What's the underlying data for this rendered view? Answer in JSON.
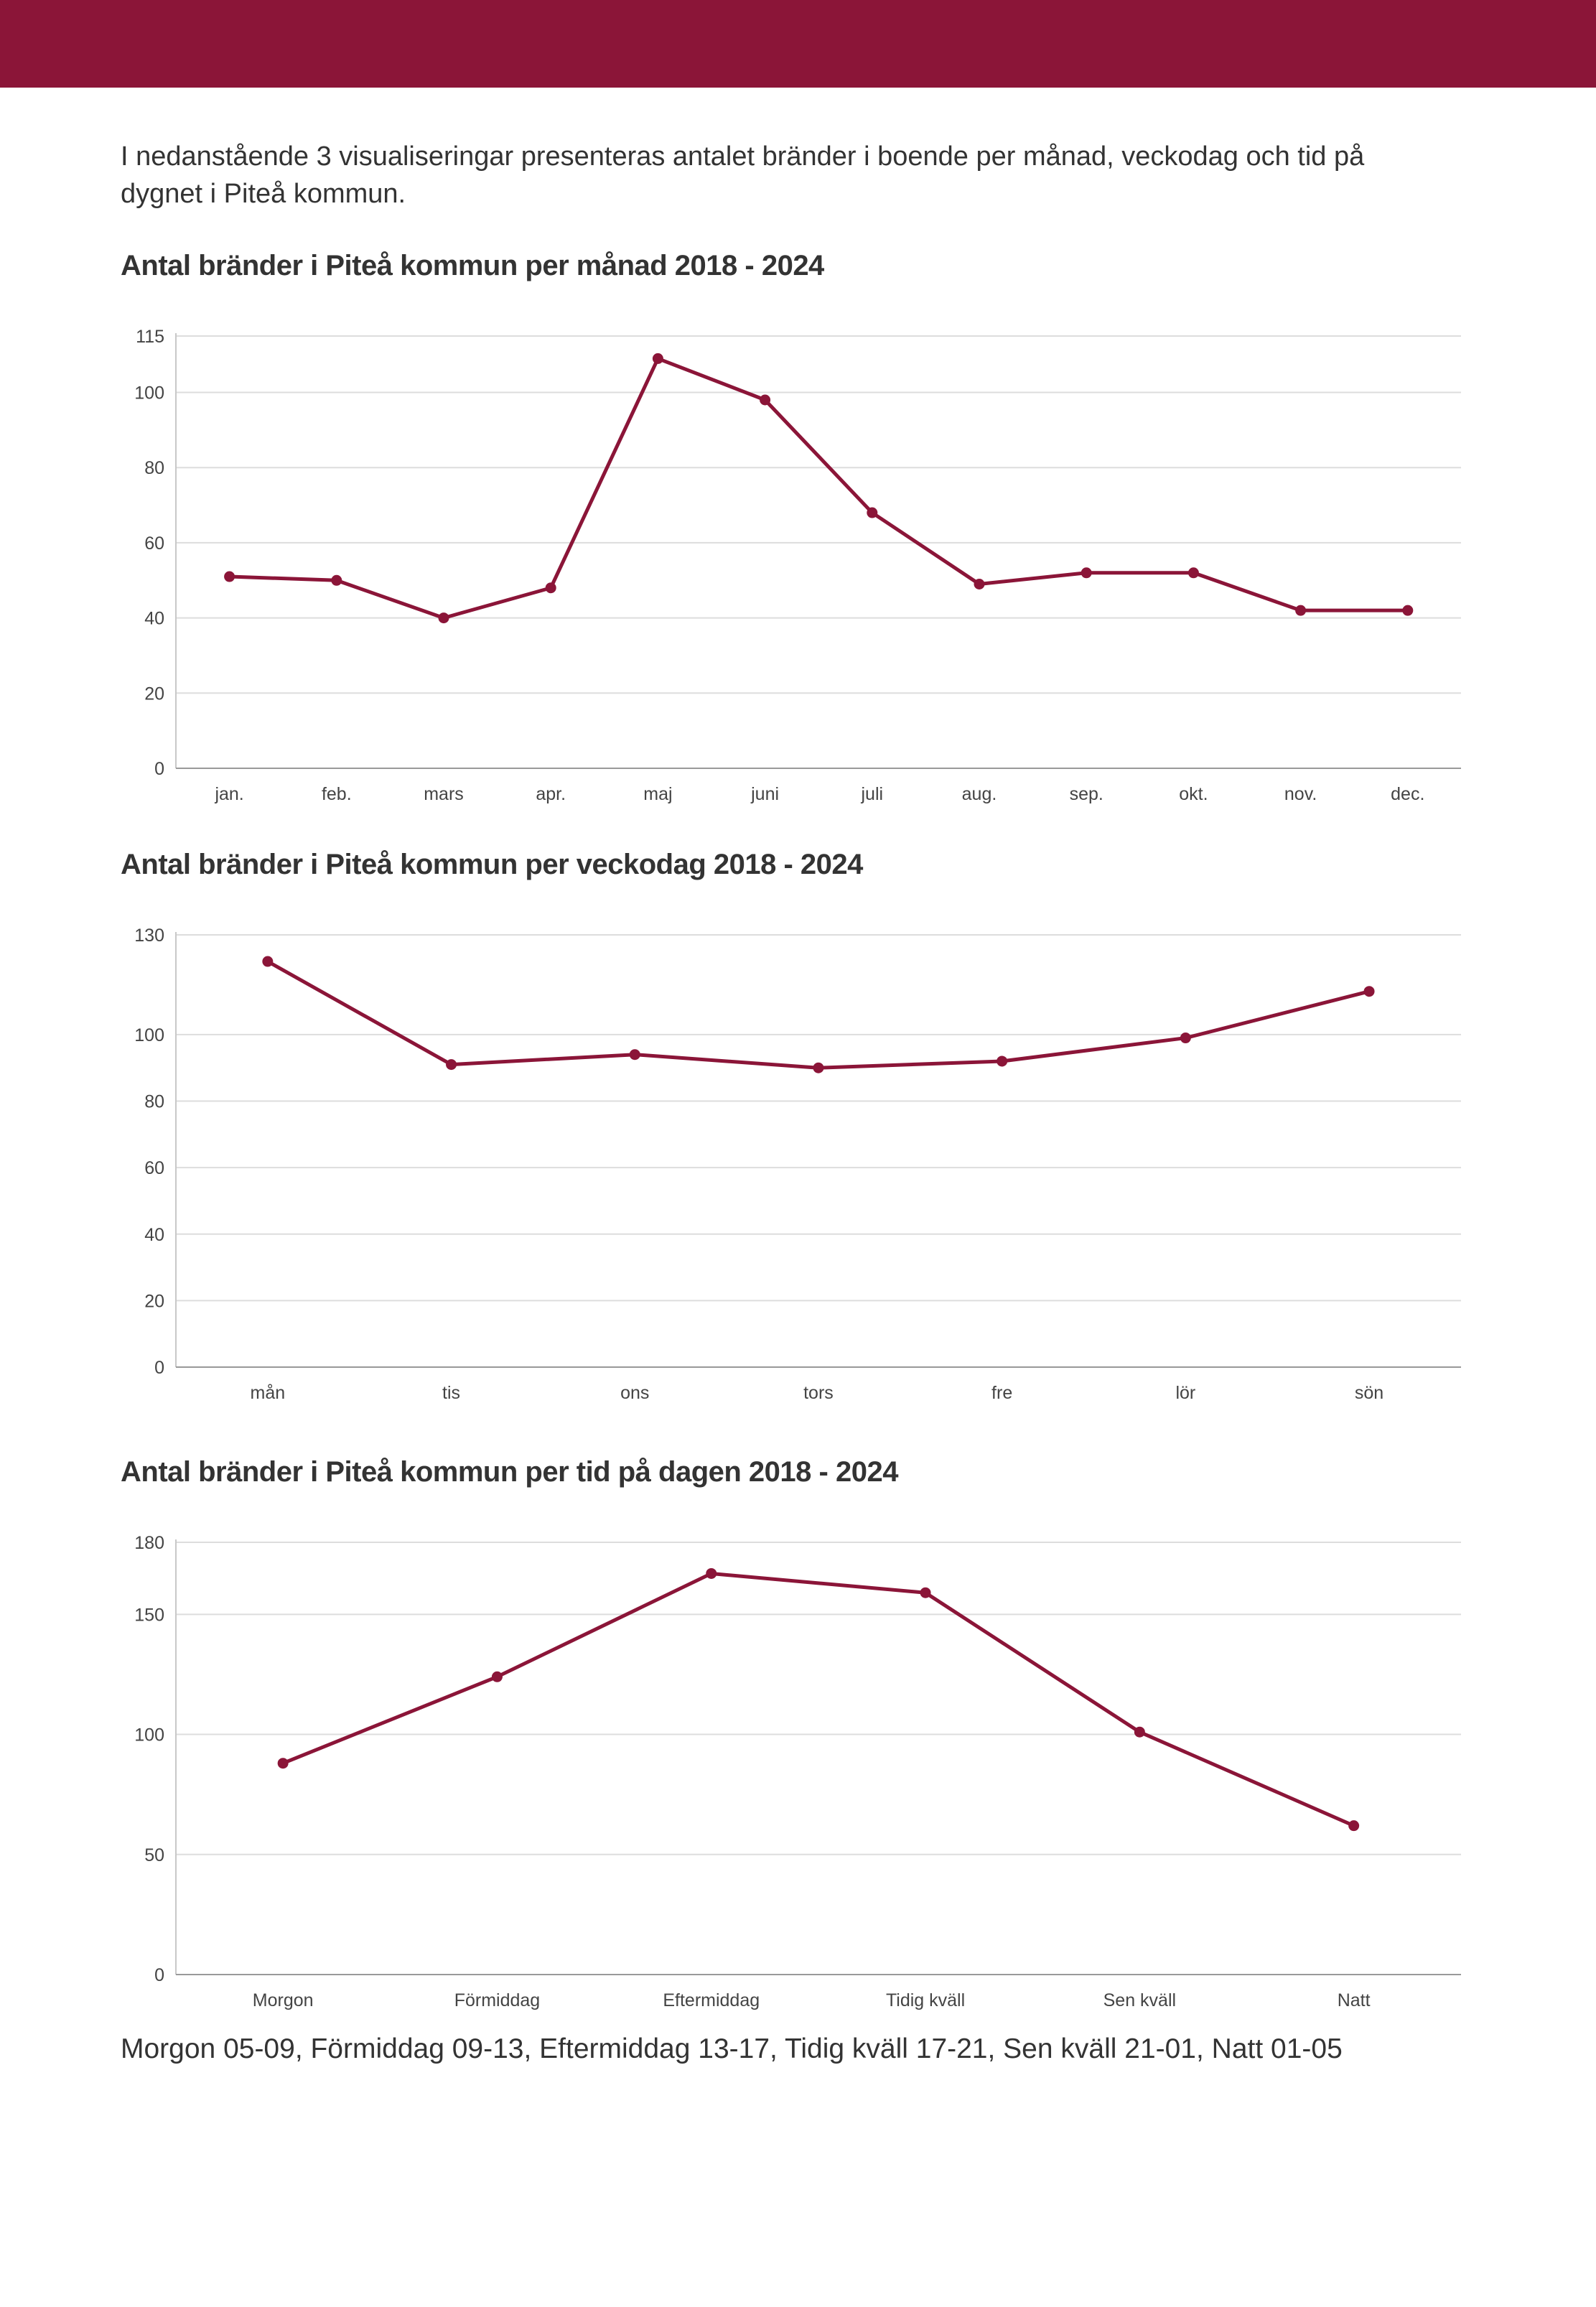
{
  "page": {
    "accent_color": "#8b1538",
    "intro_text": "I nedanstående 3 visualiseringar presenteras antalet bränder i boende per månad, veckodag och tid på dygnet i Piteå kommun.",
    "footnote": "Morgon 05-09, Förmiddag 09-13, Eftermiddag 13-17, Tidig kväll 17-21, Sen kväll 21-01, Natt 01-05"
  },
  "chart_data": [
    {
      "type": "line",
      "title": "Antal bränder i Piteå kommun per månad 2018 - 2024",
      "categories": [
        "jan.",
        "feb.",
        "mars",
        "apr.",
        "maj",
        "juni",
        "juli",
        "aug.",
        "sep.",
        "okt.",
        "nov.",
        "dec."
      ],
      "values": [
        51,
        50,
        40,
        48,
        109,
        98,
        68,
        49,
        52,
        52,
        42,
        42
      ],
      "yticks": [
        0,
        20,
        40,
        60,
        80,
        100,
        115
      ],
      "ylim": [
        0,
        115
      ],
      "xlabel": "",
      "ylabel": "",
      "color": "#8b1538",
      "grid": true
    },
    {
      "type": "line",
      "title": "Antal bränder i Piteå kommun per veckodag 2018 - 2024",
      "categories": [
        "mån",
        "tis",
        "ons",
        "tors",
        "fre",
        "lör",
        "sön"
      ],
      "values": [
        122,
        91,
        94,
        90,
        92,
        99,
        113
      ],
      "yticks": [
        0,
        20,
        40,
        60,
        80,
        100,
        130
      ],
      "ylim": [
        0,
        130
      ],
      "xlabel": "",
      "ylabel": "",
      "color": "#8b1538",
      "grid": true
    },
    {
      "type": "line",
      "title": "Antal bränder i Piteå kommun per tid på dagen 2018 - 2024",
      "categories": [
        "Morgon",
        "Förmiddag",
        "Eftermiddag",
        "Tidig kväll",
        "Sen kväll",
        "Natt"
      ],
      "values": [
        88,
        124,
        167,
        159,
        101,
        62
      ],
      "yticks": [
        0,
        50,
        100,
        150,
        180
      ],
      "ylim": [
        0,
        180
      ],
      "xlabel": "",
      "ylabel": "",
      "color": "#8b1538",
      "grid": true
    }
  ]
}
